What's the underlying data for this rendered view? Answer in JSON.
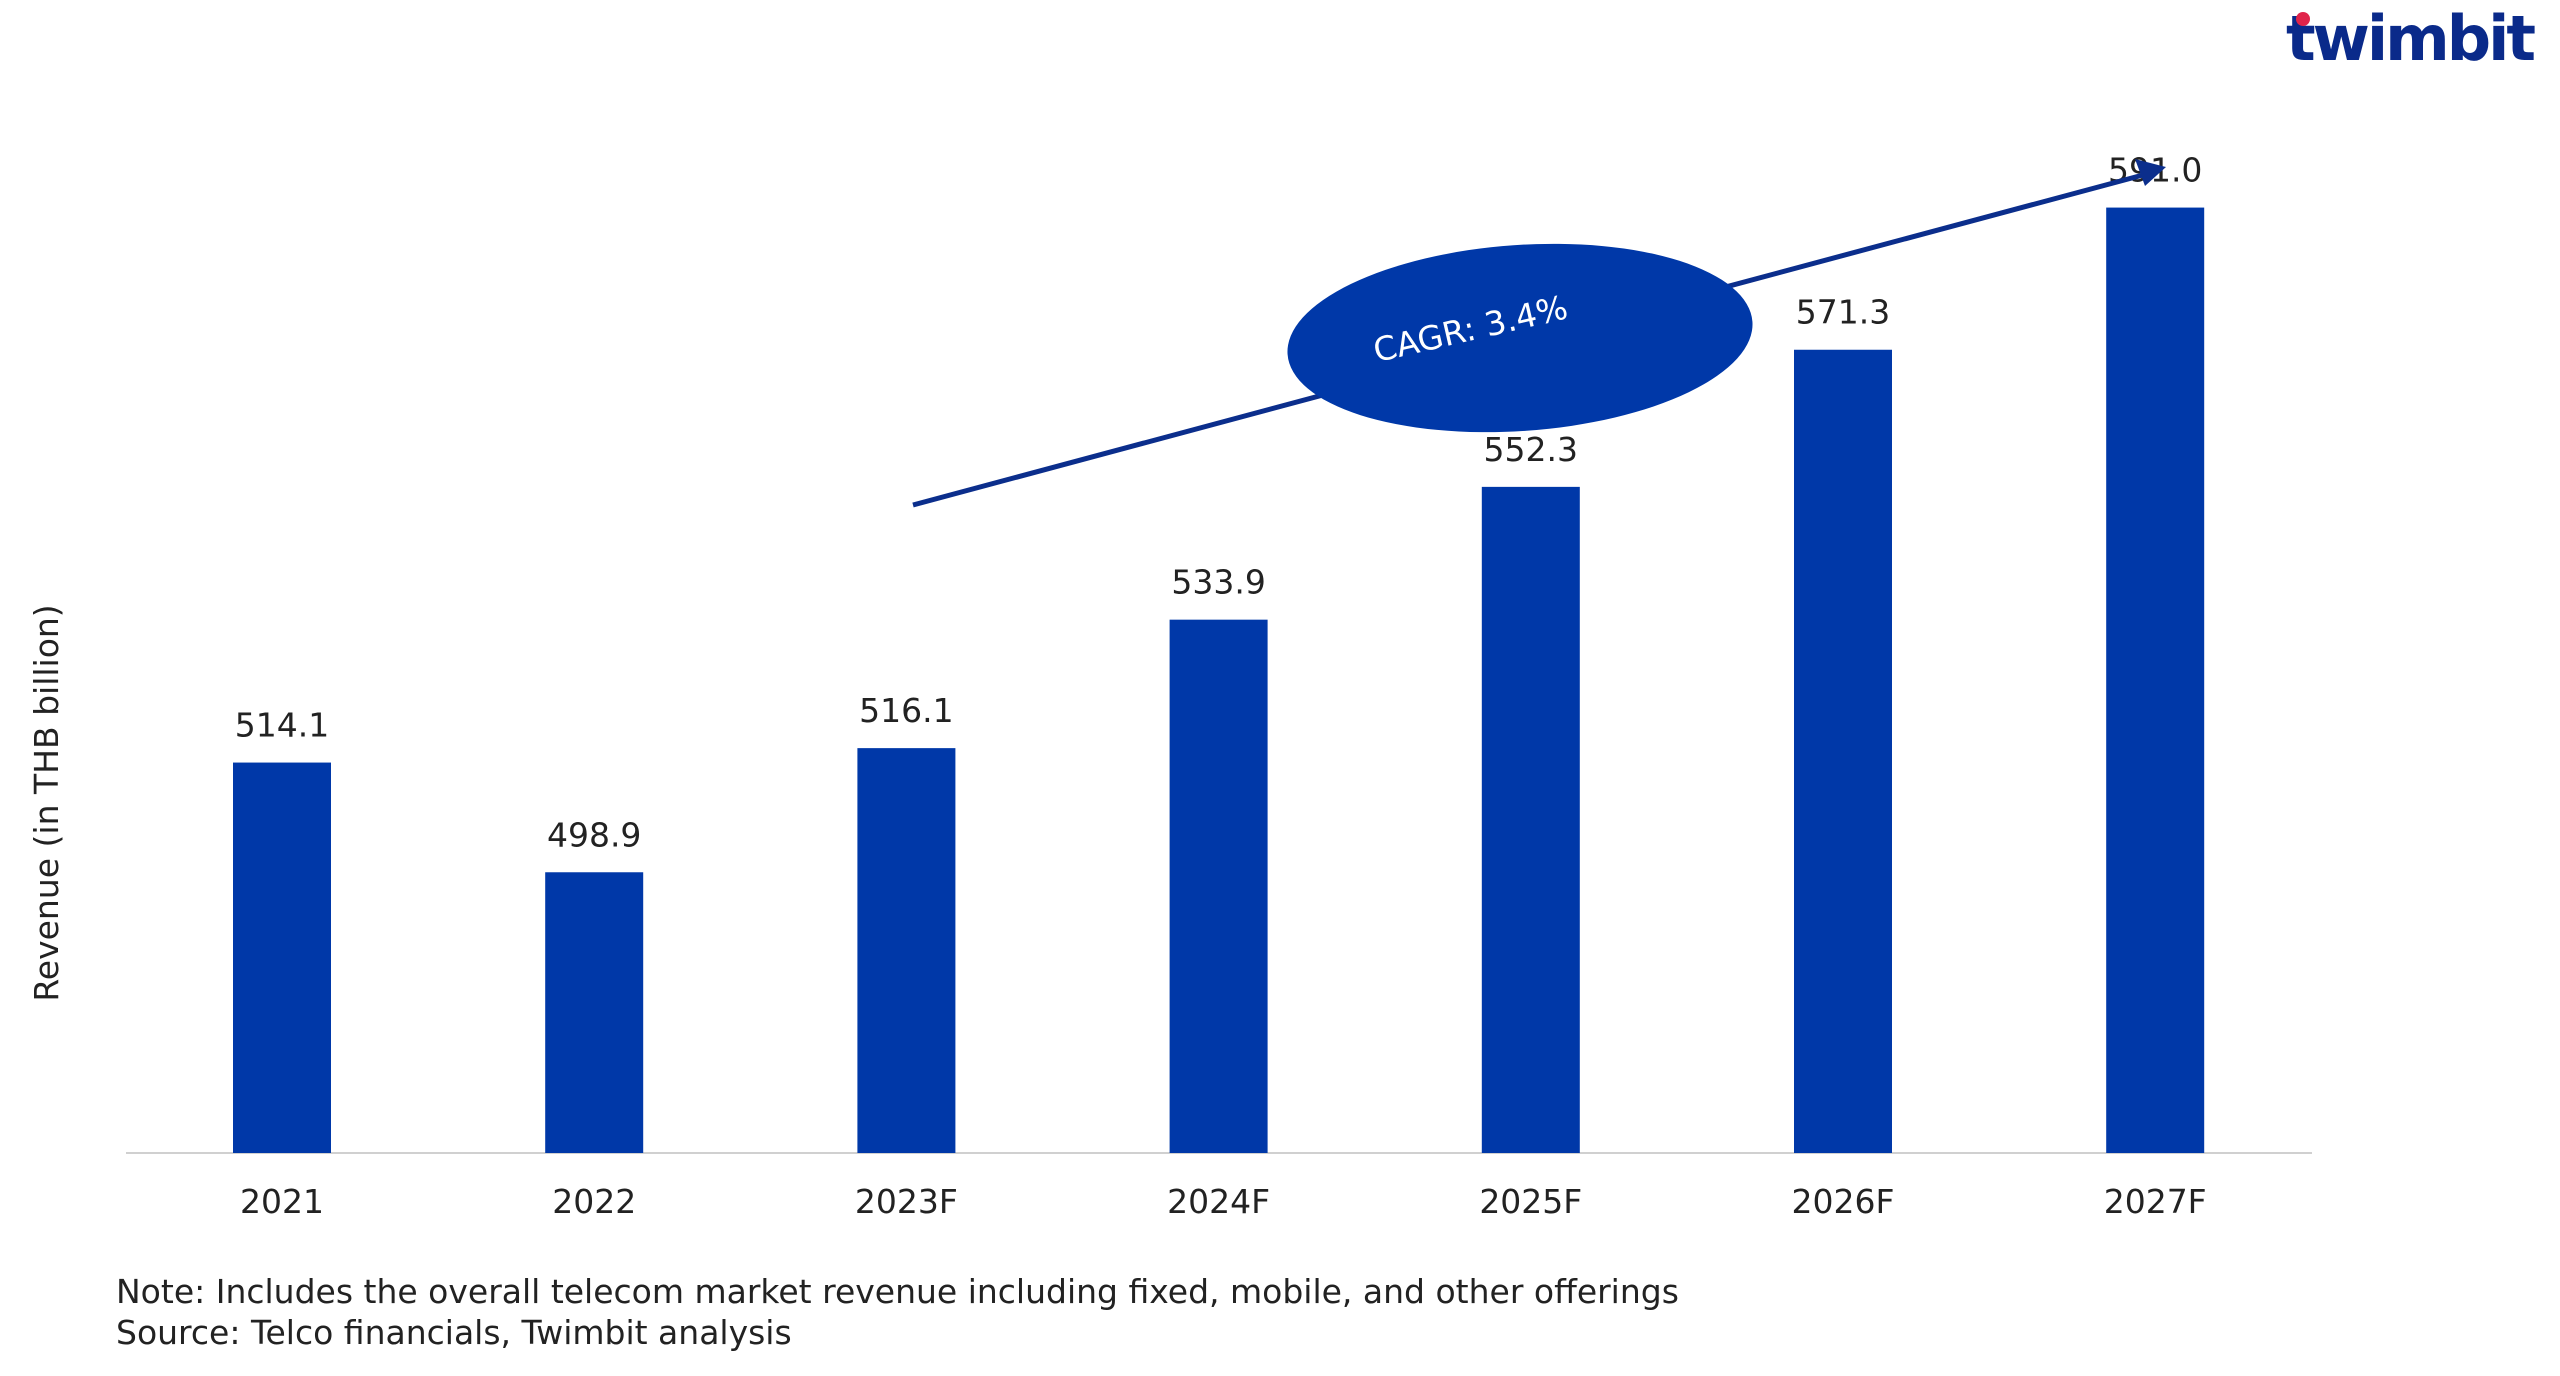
{
  "logo": {
    "text": "twimbit",
    "color": "#0A2A8A",
    "dot_color": "#E0244A"
  },
  "colors": {
    "bar": "#0038A8",
    "axis_line": "#D0D0D0",
    "arrow": "#0B2E8C",
    "ellipse": "#0038A8"
  },
  "annotation": {
    "label": "CAGR: 3.4%"
  },
  "footer": {
    "note": "Note: Includes the overall telecom market revenue including fixed, mobile, and other offerings",
    "source": "Source: Telco financials, Twimbit analysis"
  },
  "chart_data": {
    "type": "bar",
    "title": "",
    "xlabel": "",
    "ylabel": "Revenue (in THB billion)",
    "categories": [
      "2021",
      "2022",
      "2023F",
      "2024F",
      "2025F",
      "2026F",
      "2027F"
    ],
    "values": [
      514.1,
      498.9,
      516.1,
      533.9,
      552.3,
      571.3,
      591.0
    ],
    "value_labels": [
      "514.1",
      "498.9",
      "516.1",
      "533.9",
      "552.3",
      "571.3",
      "591.0"
    ],
    "grid": false,
    "legend": "none"
  }
}
